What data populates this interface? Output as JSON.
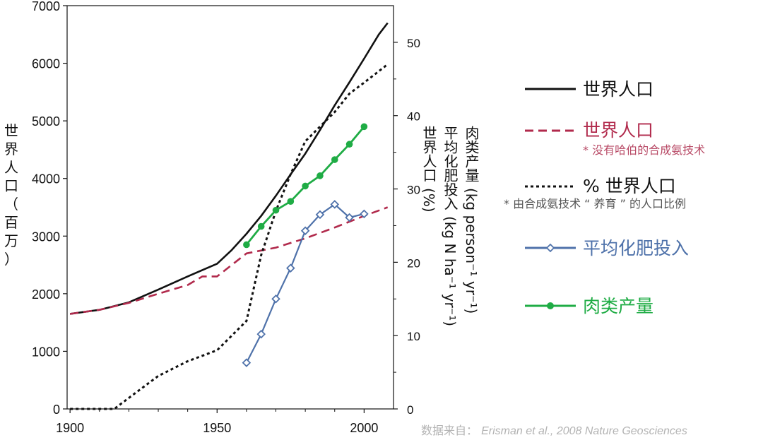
{
  "chart_data": {
    "type": "line",
    "x_axis": {
      "min": 1900,
      "max": 2010,
      "ticks": [
        1900,
        1950,
        2000
      ]
    },
    "y_left": {
      "min": 0,
      "max": 7000,
      "ticks": [
        0,
        1000,
        2000,
        3000,
        4000,
        5000,
        6000,
        7000
      ],
      "label_chars": [
        "世",
        "界",
        "人",
        "口",
        "（",
        "百",
        "万",
        "）"
      ]
    },
    "y_right": {
      "min": 0,
      "max": 55,
      "ticks": [
        0,
        10,
        20,
        30,
        40,
        50
      ],
      "labels": [
        {
          "top": "世界人口",
          "paren": "(%)"
        },
        {
          "top": "平均化肥投入",
          "paren": "(kg N ha⁻¹ yr⁻¹)"
        },
        {
          "top": "肉类产量",
          "paren": "(kg person⁻¹ yr⁻¹)"
        }
      ]
    },
    "series": [
      {
        "name": "世界人口",
        "axis": "left",
        "style": "solid",
        "color": "#111111",
        "x": [
          1900,
          1910,
          1920,
          1930,
          1940,
          1950,
          1955,
          1960,
          1965,
          1970,
          1975,
          1980,
          1985,
          1990,
          1995,
          2000,
          2005,
          2008
        ],
        "y": [
          1650,
          1720,
          1850,
          2070,
          2300,
          2520,
          2760,
          3040,
          3350,
          3700,
          4070,
          4430,
          4840,
          5270,
          5670,
          6080,
          6500,
          6700
        ]
      },
      {
        "name": "世界人口",
        "note": "* 没有哈伯的合成氨技术",
        "axis": "left",
        "style": "dashed",
        "color": "#b12a4c",
        "x": [
          1900,
          1910,
          1920,
          1930,
          1940,
          1945,
          1950,
          1960,
          1970,
          1980,
          1990,
          2000,
          2008
        ],
        "y": [
          1650,
          1720,
          1840,
          2000,
          2150,
          2300,
          2300,
          2700,
          2800,
          2960,
          3150,
          3350,
          3500
        ]
      },
      {
        "name": "% 世界人口",
        "note": "* 由合成氨技术 “ 养育 ” 的人口比例",
        "axis": "right",
        "style": "dotted",
        "color": "#111111",
        "x": [
          1900,
          1910,
          1915,
          1920,
          1930,
          1940,
          1950,
          1960,
          1965,
          1970,
          1975,
          1980,
          1985,
          1990,
          1995,
          2000,
          2008
        ],
        "y": [
          0,
          0,
          0,
          1.5,
          4.5,
          6.5,
          8,
          12,
          21,
          27,
          32,
          36.5,
          38.5,
          40.5,
          43,
          44.5,
          47
        ]
      },
      {
        "name": "平均化肥投入",
        "axis": "right",
        "style": "open-marker",
        "color": "#4f72aa",
        "x": [
          1960,
          1965,
          1970,
          1975,
          1980,
          1985,
          1990,
          1995,
          2000
        ],
        "y": [
          6.3,
          10.2,
          15,
          19.2,
          24.3,
          26.5,
          27.9,
          26.1,
          26.6
        ]
      },
      {
        "name": "肉类产量",
        "axis": "right",
        "style": "filled-marker",
        "color": "#1fac45",
        "x": [
          1960,
          1965,
          1970,
          1975,
          1980,
          1985,
          1990,
          1995,
          2000
        ],
        "y": [
          22.4,
          24.9,
          27.1,
          28.3,
          30.4,
          31.8,
          34,
          36.1,
          38.5
        ]
      }
    ]
  },
  "source": {
    "prefix": "数据来自：",
    "citation": "Erisman et al., 2008 Nature Geosciences"
  }
}
